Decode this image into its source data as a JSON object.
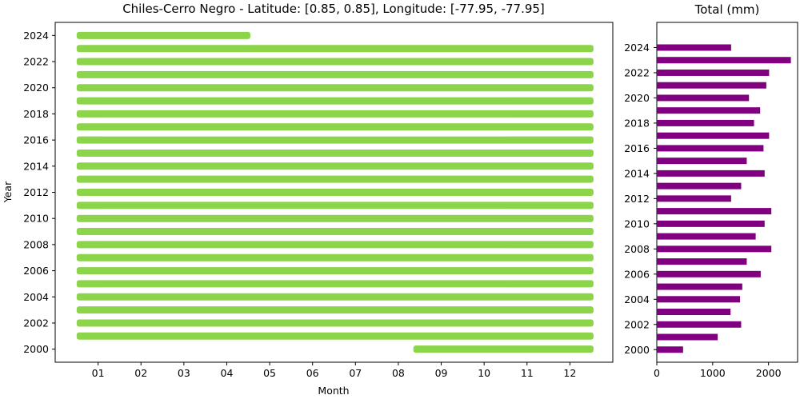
{
  "chart_data": [
    {
      "type": "bar",
      "orientation": "horizontal",
      "title": "Chiles-Cerro Negro - Latitude: [0.85, 0.85], Longitude: [-77.95, -77.95]",
      "xlabel": "Month",
      "ylabel": "Year",
      "xticks": [
        "01",
        "02",
        "03",
        "04",
        "05",
        "06",
        "07",
        "08",
        "09",
        "10",
        "11",
        "12"
      ],
      "yticks": [
        "2000",
        "2002",
        "2004",
        "2006",
        "2008",
        "2010",
        "2012",
        "2014",
        "2016",
        "2018",
        "2020",
        "2022",
        "2024"
      ],
      "xlim": [
        0,
        13
      ],
      "ylim": [
        1999,
        2025
      ],
      "color": "#8cd44a",
      "series": [
        {
          "year": 2000,
          "start_month": 8.35,
          "end_month": 12.55
        },
        {
          "year": 2001,
          "start_month": 0.5,
          "end_month": 12.55
        },
        {
          "year": 2002,
          "start_month": 0.5,
          "end_month": 12.55
        },
        {
          "year": 2003,
          "start_month": 0.5,
          "end_month": 12.55
        },
        {
          "year": 2004,
          "start_month": 0.5,
          "end_month": 12.55
        },
        {
          "year": 2005,
          "start_month": 0.5,
          "end_month": 12.55
        },
        {
          "year": 2006,
          "start_month": 0.5,
          "end_month": 12.55
        },
        {
          "year": 2007,
          "start_month": 0.5,
          "end_month": 12.55
        },
        {
          "year": 2008,
          "start_month": 0.5,
          "end_month": 12.55
        },
        {
          "year": 2009,
          "start_month": 0.5,
          "end_month": 12.55
        },
        {
          "year": 2010,
          "start_month": 0.5,
          "end_month": 12.55
        },
        {
          "year": 2011,
          "start_month": 0.5,
          "end_month": 12.55
        },
        {
          "year": 2012,
          "start_month": 0.5,
          "end_month": 12.55
        },
        {
          "year": 2013,
          "start_month": 0.5,
          "end_month": 12.55
        },
        {
          "year": 2014,
          "start_month": 0.5,
          "end_month": 12.55
        },
        {
          "year": 2015,
          "start_month": 0.5,
          "end_month": 12.55
        },
        {
          "year": 2016,
          "start_month": 0.5,
          "end_month": 12.55
        },
        {
          "year": 2017,
          "start_month": 0.5,
          "end_month": 12.55
        },
        {
          "year": 2018,
          "start_month": 0.5,
          "end_month": 12.55
        },
        {
          "year": 2019,
          "start_month": 0.5,
          "end_month": 12.55
        },
        {
          "year": 2020,
          "start_month": 0.5,
          "end_month": 12.55
        },
        {
          "year": 2021,
          "start_month": 0.5,
          "end_month": 12.55
        },
        {
          "year": 2022,
          "start_month": 0.5,
          "end_month": 12.55
        },
        {
          "year": 2023,
          "start_month": 0.5,
          "end_month": 12.55
        },
        {
          "year": 2024,
          "start_month": 0.5,
          "end_month": 4.55
        }
      ]
    },
    {
      "type": "bar",
      "orientation": "horizontal",
      "title": "Total (mm)",
      "xticks": [
        "0",
        "1000",
        "2000"
      ],
      "yticks": [
        "2000",
        "2002",
        "2004",
        "2006",
        "2008",
        "2010",
        "2012",
        "2014",
        "2016",
        "2018",
        "2020",
        "2022",
        "2024"
      ],
      "xlim": [
        0,
        2520
      ],
      "ylim": [
        1999,
        2026
      ],
      "color": "#800080",
      "categories": [
        2000,
        2001,
        2002,
        2003,
        2004,
        2005,
        2006,
        2007,
        2008,
        2009,
        2010,
        2011,
        2012,
        2013,
        2014,
        2015,
        2016,
        2017,
        2018,
        2019,
        2020,
        2021,
        2022,
        2023,
        2024
      ],
      "values": [
        470,
        1090,
        1510,
        1320,
        1490,
        1530,
        1860,
        1610,
        2050,
        1770,
        1930,
        2050,
        1330,
        1510,
        1930,
        1610,
        1910,
        2010,
        1740,
        1850,
        1650,
        1960,
        2010,
        2400,
        1330
      ]
    }
  ]
}
